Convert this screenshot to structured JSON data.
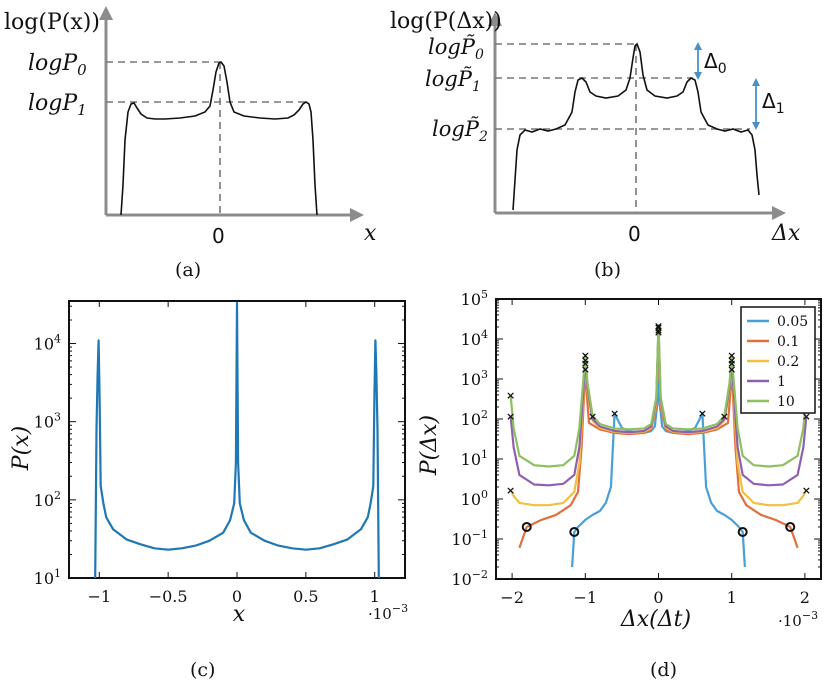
{
  "panel_a": {
    "caption": "(a)",
    "ylabel": "log(P(x))",
    "xlabel": "x",
    "zero": "0",
    "level0": "logP",
    "level0_sub": "0",
    "level1": "logP",
    "level1_sub": "1"
  },
  "panel_b": {
    "caption": "(b)",
    "ylabel": "log(P(Δx))",
    "xlabel": "Δx",
    "zero": "0",
    "level0": "logP̃",
    "level0_sub": "0",
    "level1": "logP̃",
    "level1_sub": "1",
    "level2": "logP̃",
    "level2_sub": "2",
    "delta0": "Δ",
    "delta0_sub": "0",
    "delta1": "Δ",
    "delta1_sub": "1",
    "colors": {
      "arrow": "#4a90c8"
    }
  },
  "chart_data": [
    {
      "type": "line",
      "panel": "(c)",
      "xlabel": "x",
      "ylabel": "P(x)",
      "x_multiplier": "·10",
      "x_multiplier_exp": "−3",
      "xlim": [
        -1.22,
        1.22
      ],
      "ylim": [
        10,
        35000
      ],
      "yscale": "log",
      "xticks": [
        "−1",
        "−0.5",
        "0",
        "0.5",
        "1"
      ],
      "yticks": [
        "10",
        "10",
        "10",
        "10"
      ],
      "ytick_exps": [
        "1",
        "2",
        "3",
        "4"
      ],
      "series": [
        {
          "color": "#1f77b4",
          "x": [
            -1.03,
            -1.02,
            -1.012,
            -1.005,
            -0.998,
            -0.99,
            -0.97,
            -0.95,
            -0.9,
            -0.8,
            -0.7,
            -0.6,
            -0.5,
            -0.4,
            -0.3,
            -0.2,
            -0.1,
            -0.05,
            -0.02,
            -0.008,
            0,
            0.008,
            0.02,
            0.05,
            0.1,
            0.2,
            0.3,
            0.4,
            0.5,
            0.6,
            0.7,
            0.8,
            0.9,
            0.95,
            0.97,
            0.99,
            0.998,
            1.005,
            1.012,
            1.02,
            1.03
          ],
          "y": [
            10,
            800,
            4000,
            11000,
            2000,
            150,
            90,
            60,
            42,
            31,
            27,
            24,
            23,
            24,
            26,
            30,
            38,
            55,
            90,
            300,
            33000,
            300,
            90,
            55,
            38,
            30,
            26,
            24,
            23,
            24,
            27,
            31,
            42,
            60,
            90,
            150,
            2000,
            11000,
            4000,
            800,
            10
          ]
        }
      ]
    },
    {
      "type": "line",
      "panel": "(d)",
      "xlabel": "Δx(Δt)",
      "ylabel": "P(Δx)",
      "x_multiplier": "·10",
      "x_multiplier_exp": "−3",
      "xlim": [
        -2.22,
        2.22
      ],
      "ylim": [
        0.01,
        100000
      ],
      "yscale": "log",
      "xticks": [
        "−2",
        "−1",
        "0",
        "1",
        "2"
      ],
      "yticks": [
        "10",
        "10",
        "10",
        "10",
        "10",
        "10",
        "10",
        "10"
      ],
      "ytick_exps": [
        "−2",
        "−1",
        "0",
        "1",
        "2",
        "3",
        "4",
        "5"
      ],
      "legend": {
        "placement": "top-right"
      },
      "series": [
        {
          "name": "0.05",
          "color": "#4a9fd8",
          "x": [
            -1.18,
            -1.15,
            -1.1,
            -1.0,
            -0.9,
            -0.8,
            -0.72,
            -0.65,
            -0.6,
            -0.55,
            -0.5,
            -0.4,
            -0.3,
            -0.2,
            -0.1,
            -0.05,
            -0.01,
            0,
            0.01,
            0.05,
            0.1,
            0.2,
            0.3,
            0.4,
            0.5,
            0.55,
            0.6,
            0.65,
            0.72,
            0.8,
            0.9,
            1.0,
            1.1,
            1.15,
            1.18
          ],
          "y": [
            0.02,
            0.15,
            0.2,
            0.3,
            0.4,
            0.5,
            0.8,
            2,
            140,
            90,
            60,
            50,
            45,
            45,
            50,
            65,
            300,
            20000,
            300,
            65,
            50,
            45,
            45,
            50,
            60,
            90,
            140,
            2,
            0.8,
            0.5,
            0.4,
            0.3,
            0.2,
            0.15,
            0.02
          ]
        },
        {
          "name": "0.1",
          "color": "#e07040",
          "x": [
            -1.9,
            -1.8,
            -1.6,
            -1.4,
            -1.2,
            -1.1,
            -1.05,
            -1.02,
            -1.0,
            -0.98,
            -0.95,
            -0.8,
            -0.6,
            -0.4,
            -0.2,
            -0.1,
            -0.03,
            0,
            0.03,
            0.1,
            0.2,
            0.4,
            0.6,
            0.8,
            0.95,
            0.98,
            1.0,
            1.02,
            1.05,
            1.1,
            1.2,
            1.4,
            1.6,
            1.8,
            1.9
          ],
          "y": [
            0.06,
            0.2,
            0.3,
            0.4,
            0.7,
            1.5,
            20,
            300,
            1800,
            400,
            80,
            55,
            45,
            42,
            45,
            55,
            200,
            15000,
            200,
            55,
            45,
            42,
            45,
            55,
            80,
            400,
            1800,
            300,
            20,
            1.5,
            0.7,
            0.4,
            0.3,
            0.2,
            0.06
          ]
        },
        {
          "name": "0.2",
          "color": "#f0c040",
          "x": [
            -2.02,
            -1.98,
            -1.9,
            -1.7,
            -1.5,
            -1.3,
            -1.15,
            -1.08,
            -1.03,
            -1.0,
            -0.97,
            -0.9,
            -0.8,
            -0.6,
            -0.4,
            -0.2,
            -0.1,
            -0.03,
            0,
            0.03,
            0.1,
            0.2,
            0.4,
            0.6,
            0.8,
            0.9,
            0.97,
            1.0,
            1.03,
            1.08,
            1.15,
            1.3,
            1.5,
            1.7,
            1.9,
            1.98,
            2.02
          ],
          "y": [
            1.7,
            1.2,
            0.8,
            0.7,
            0.7,
            0.8,
            1.5,
            8,
            300,
            2500,
            500,
            90,
            60,
            48,
            45,
            48,
            60,
            250,
            17000,
            250,
            60,
            48,
            45,
            48,
            60,
            90,
            500,
            2500,
            300,
            8,
            1.5,
            0.8,
            0.7,
            0.7,
            0.8,
            1.2,
            1.7
          ]
        },
        {
          "name": "1",
          "color": "#9060b0",
          "x": [
            -2.02,
            -1.98,
            -1.9,
            -1.7,
            -1.5,
            -1.3,
            -1.15,
            -1.08,
            -1.03,
            -1.0,
            -0.97,
            -0.9,
            -0.8,
            -0.6,
            -0.4,
            -0.2,
            -0.1,
            -0.03,
            0,
            0.03,
            0.1,
            0.2,
            0.4,
            0.6,
            0.8,
            0.9,
            0.97,
            1.0,
            1.03,
            1.08,
            1.15,
            1.3,
            1.5,
            1.7,
            1.9,
            1.98,
            2.02
          ],
          "y": [
            120,
            20,
            4,
            2.3,
            2.2,
            2.4,
            4,
            20,
            400,
            3000,
            600,
            100,
            65,
            50,
            47,
            50,
            65,
            300,
            20000,
            300,
            65,
            50,
            47,
            50,
            65,
            100,
            600,
            3000,
            400,
            20,
            4,
            2.4,
            2.2,
            2.3,
            4,
            20,
            120
          ]
        },
        {
          "name": "10",
          "color": "#8cc060",
          "x": [
            -2.02,
            -1.98,
            -1.9,
            -1.7,
            -1.5,
            -1.3,
            -1.15,
            -1.08,
            -1.03,
            -1.0,
            -0.97,
            -0.9,
            -0.8,
            -0.6,
            -0.4,
            -0.2,
            -0.1,
            -0.03,
            0,
            0.03,
            0.1,
            0.2,
            0.4,
            0.6,
            0.8,
            0.9,
            0.97,
            1.0,
            1.03,
            1.08,
            1.15,
            1.3,
            1.5,
            1.7,
            1.9,
            1.98,
            2.02
          ],
          "y": [
            400,
            60,
            12,
            7,
            6.5,
            7,
            12,
            60,
            800,
            4000,
            800,
            120,
            75,
            58,
            55,
            58,
            75,
            350,
            22000,
            350,
            75,
            58,
            55,
            58,
            75,
            120,
            800,
            4000,
            800,
            60,
            12,
            7,
            6.5,
            7,
            12,
            60,
            400
          ]
        }
      ],
      "markers_x": [
        {
          "x": -2.02,
          "y": 400
        },
        {
          "x": -2.02,
          "y": 120
        },
        {
          "x": -2.02,
          "y": 1.7
        },
        {
          "x": -1.0,
          "y": 4000
        },
        {
          "x": -1.0,
          "y": 3000
        },
        {
          "x": -1.0,
          "y": 2500
        },
        {
          "x": -1.0,
          "y": 1800
        },
        {
          "x": -0.9,
          "y": 120
        },
        {
          "x": -0.6,
          "y": 140
        },
        {
          "x": 0,
          "y": 22000
        },
        {
          "x": 0,
          "y": 20000
        },
        {
          "x": 0,
          "y": 17000
        },
        {
          "x": 0,
          "y": 15000
        },
        {
          "x": 0.6,
          "y": 140
        },
        {
          "x": 0.9,
          "y": 120
        },
        {
          "x": 1.0,
          "y": 4000
        },
        {
          "x": 1.0,
          "y": 3000
        },
        {
          "x": 1.0,
          "y": 2500
        },
        {
          "x": 1.0,
          "y": 1800
        },
        {
          "x": 2.02,
          "y": 400
        },
        {
          "x": 2.02,
          "y": 120
        },
        {
          "x": 2.02,
          "y": 1.7
        }
      ],
      "markers_o": [
        {
          "x": -1.8,
          "y": 0.2
        },
        {
          "x": -1.15,
          "y": 0.15
        },
        {
          "x": 1.15,
          "y": 0.15
        },
        {
          "x": 1.8,
          "y": 0.2
        }
      ]
    }
  ],
  "captions": {
    "c": "(c)",
    "d": "(d)"
  }
}
